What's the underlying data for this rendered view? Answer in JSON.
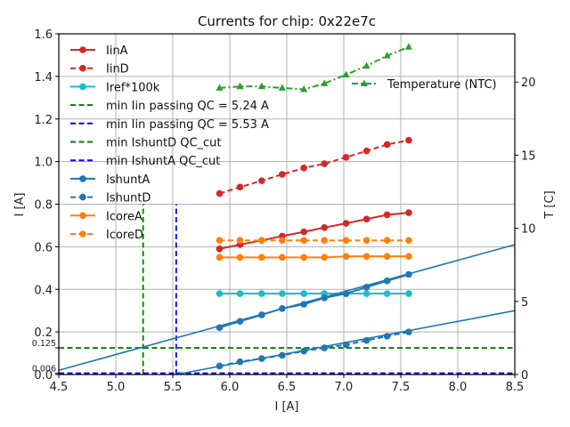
{
  "chart_data": {
    "type": "line",
    "title": "Currents for chip: 0x22e7c",
    "xlabel": "I [A]",
    "ylabel": "I [A]",
    "y2label": "T [C]",
    "xlim": [
      4.5,
      8.5
    ],
    "ylim": [
      0.0,
      1.6
    ],
    "y2lim": [
      0,
      23.3
    ],
    "grid": true,
    "x_ticks": [
      "4.5",
      "5.0",
      "5.5",
      "6.0",
      "6.5",
      "7.0",
      "7.5",
      "8.0",
      "8.5"
    ],
    "y_ticks": [
      "0.0",
      "0.2",
      "0.4",
      "0.6",
      "0.8",
      "1.0",
      "1.2",
      "1.4",
      "1.6"
    ],
    "y_extra_ticks": [
      "0.006",
      "0.125"
    ],
    "y2_ticks": [
      "0",
      "5",
      "10",
      "15",
      "20"
    ],
    "x": [
      5.91,
      6.09,
      6.28,
      6.46,
      6.65,
      6.83,
      7.02,
      7.2,
      7.38,
      7.57
    ],
    "series": [
      {
        "name": "IinA",
        "color": "#d62728",
        "style": "solid",
        "marker": "circle",
        "axis": "left",
        "values": [
          0.59,
          0.61,
          0.63,
          0.65,
          0.67,
          0.69,
          0.71,
          0.73,
          0.75,
          0.76
        ]
      },
      {
        "name": "IinD",
        "color": "#d62728",
        "style": "dashed",
        "marker": "circle",
        "axis": "left",
        "values": [
          0.85,
          0.88,
          0.91,
          0.94,
          0.97,
          0.99,
          1.02,
          1.05,
          1.08,
          1.1
        ]
      },
      {
        "name": "Iref*100k",
        "color": "#17becf",
        "style": "solid",
        "marker": "circle",
        "axis": "left",
        "values": [
          0.38,
          0.38,
          0.38,
          0.38,
          0.38,
          0.38,
          0.38,
          0.38,
          0.38,
          0.38
        ]
      },
      {
        "name": "IshuntA",
        "color": "#1f77b4",
        "style": "solid",
        "marker": "circle",
        "axis": "left",
        "values": [
          0.22,
          0.25,
          0.28,
          0.31,
          0.33,
          0.36,
          0.38,
          0.41,
          0.44,
          0.47
        ],
        "fit": {
          "x": [
            4.5,
            8.5
          ],
          "y": [
            0.02,
            0.61
          ]
        }
      },
      {
        "name": "IshuntD",
        "color": "#1f77b4",
        "style": "dashed",
        "marker": "circle",
        "axis": "left",
        "values": [
          0.04,
          0.06,
          0.075,
          0.09,
          0.11,
          0.125,
          0.14,
          0.16,
          0.18,
          0.2
        ],
        "fit": {
          "x": [
            5.53,
            8.5
          ],
          "y": [
            0.0,
            0.3
          ]
        }
      },
      {
        "name": "IcoreA",
        "color": "#ff7f0e",
        "style": "solid",
        "marker": "circle",
        "axis": "left",
        "values": [
          0.55,
          0.55,
          0.55,
          0.55,
          0.55,
          0.55,
          0.555,
          0.555,
          0.555,
          0.555
        ]
      },
      {
        "name": "IcoreD",
        "color": "#ff7f0e",
        "style": "dashed",
        "marker": "circle",
        "axis": "left",
        "values": [
          0.63,
          0.63,
          0.63,
          0.63,
          0.63,
          0.63,
          0.63,
          0.63,
          0.63,
          0.63
        ]
      },
      {
        "name": "Temperature (NTC)",
        "color": "#2ca02c",
        "style": "dashdot",
        "marker": "triangle",
        "axis": "right",
        "values": [
          19.6,
          19.7,
          19.7,
          19.6,
          19.5,
          19.9,
          20.5,
          21.1,
          21.8,
          22.4
        ]
      }
    ],
    "reference_lines": [
      {
        "name": "min Iin passing QC = 5.24 A",
        "orientation": "vertical",
        "value": 5.24,
        "color": "#008000",
        "style": "dashed",
        "y_range": [
          0.0,
          0.8
        ]
      },
      {
        "name": "min Iin passing QC = 5.53 A",
        "orientation": "vertical",
        "value": 5.53,
        "color": "#0000ff",
        "style": "dashed",
        "y_range": [
          0.0,
          0.8
        ]
      },
      {
        "name": "min IshuntD QC_cut",
        "orientation": "horizontal",
        "value": 0.125,
        "color": "#008000",
        "style": "dashed"
      },
      {
        "name": "min IshuntA QC_cut",
        "orientation": "horizontal",
        "value": 0.006,
        "color": "#0000ff",
        "style": "dashed"
      }
    ],
    "legend": {
      "placement": "top-left",
      "entries": [
        "IinA",
        "IinD",
        "Iref*100k",
        "min Iin passing QC = 5.24 A",
        "min Iin passing QC = 5.53 A",
        "min IshuntD QC_cut",
        "min IshuntA QC_cut",
        "IshuntA",
        "IshuntD",
        "IcoreA",
        "IcoreD"
      ]
    },
    "legend2": {
      "placement": "top-right",
      "entries": [
        "Temperature (NTC)"
      ]
    }
  }
}
